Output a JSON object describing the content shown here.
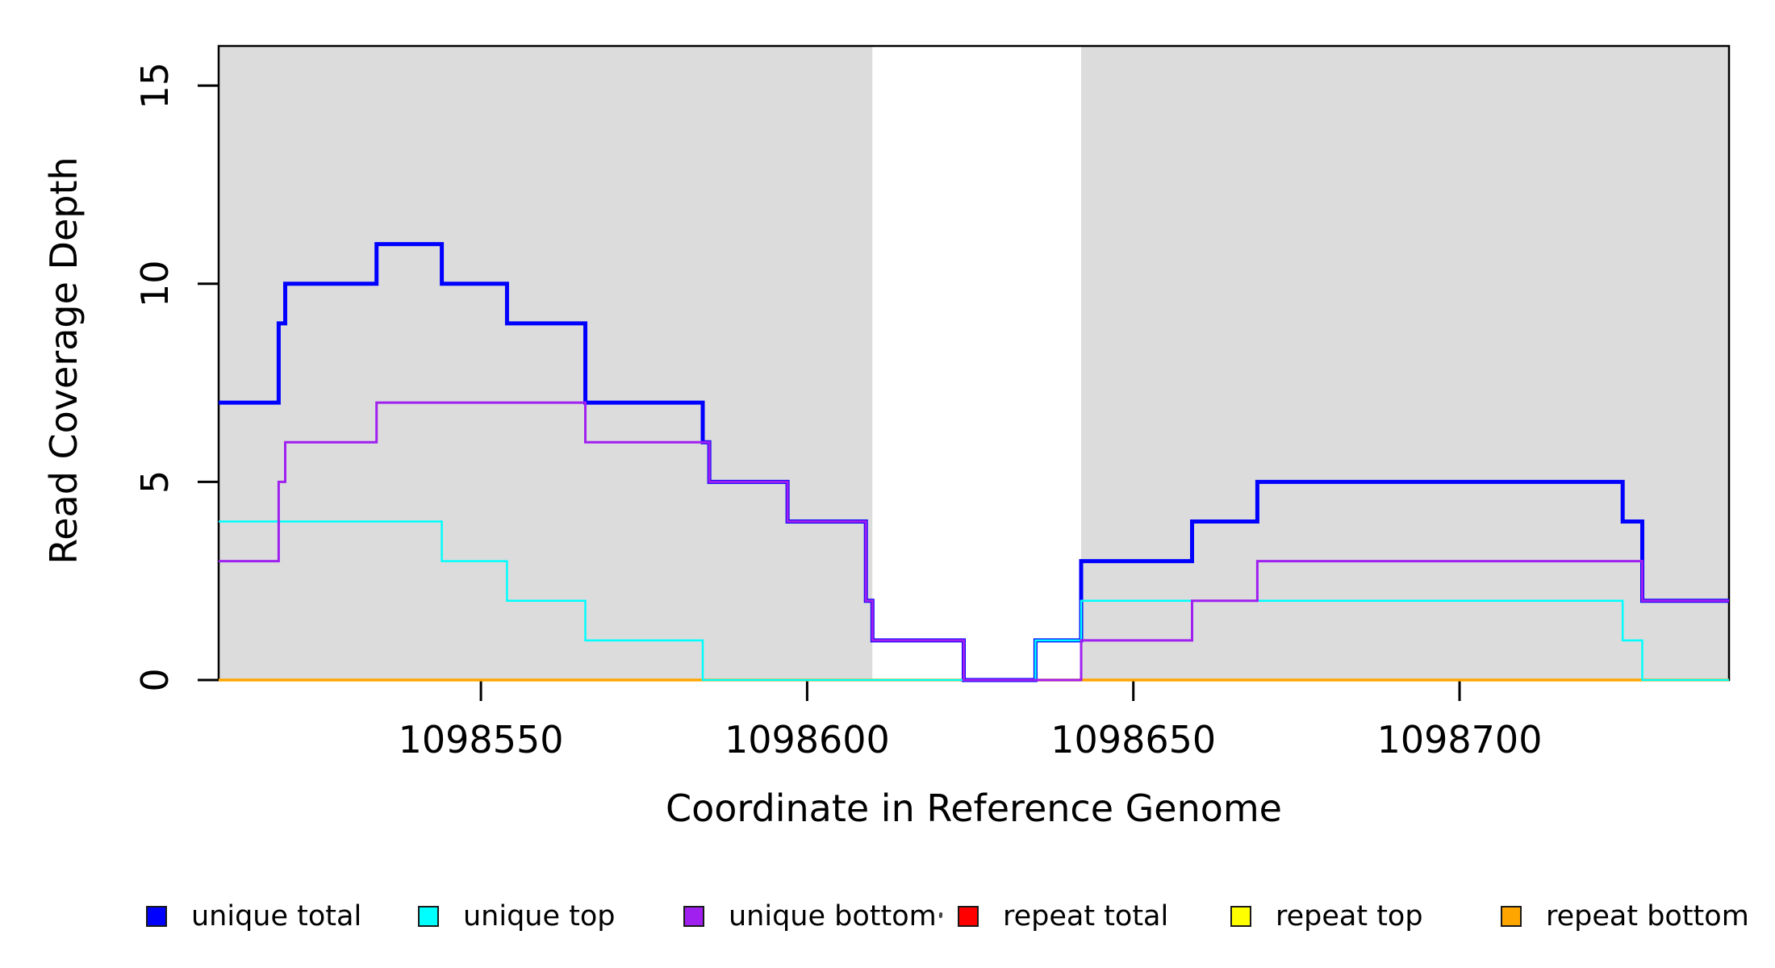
{
  "chart_data": {
    "type": "line",
    "subtype": "step",
    "title": "",
    "xlabel": "Coordinate in Reference Genome",
    "ylabel": "Read Coverage Depth",
    "xlim": [
      1098509.8,
      1098741.3
    ],
    "ylim": [
      0,
      16
    ],
    "x_ticks": [
      1098550,
      1098600,
      1098650,
      1098700
    ],
    "y_ticks": [
      0,
      5,
      10,
      15
    ],
    "grid": false,
    "legend_position": "bottom",
    "shade_color": "#dcdcdc",
    "shaded_regions": [
      [
        1098509.8,
        1098610
      ],
      [
        1098642,
        1098741.3
      ]
    ],
    "draw_order": [
      "repeat total",
      "repeat top",
      "repeat bottom",
      "unique total",
      "unique top",
      "unique bottom"
    ],
    "series": [
      {
        "name": "unique total",
        "color": "#0000ff",
        "line_width": 5,
        "steps": [
          [
            1098510,
            7
          ],
          [
            1098519,
            9
          ],
          [
            1098520,
            10
          ],
          [
            1098534,
            11
          ],
          [
            1098544,
            10
          ],
          [
            1098554,
            9
          ],
          [
            1098566,
            7
          ],
          [
            1098584,
            6
          ],
          [
            1098585,
            5
          ],
          [
            1098597,
            4
          ],
          [
            1098609,
            2
          ],
          [
            1098610,
            1
          ],
          [
            1098624,
            0
          ],
          [
            1098635,
            1
          ],
          [
            1098642,
            3
          ],
          [
            1098659,
            4
          ],
          [
            1098669,
            5
          ],
          [
            1098725,
            4
          ],
          [
            1098728,
            2
          ]
        ]
      },
      {
        "name": "unique top",
        "color": "#00ffff",
        "line_width": 2.5,
        "steps": [
          [
            1098510,
            4
          ],
          [
            1098544,
            3
          ],
          [
            1098554,
            2
          ],
          [
            1098566,
            1
          ],
          [
            1098584,
            0
          ],
          [
            1098635,
            1
          ],
          [
            1098642,
            2
          ],
          [
            1098725,
            1
          ],
          [
            1098728,
            0
          ]
        ]
      },
      {
        "name": "unique bottom",
        "color": "#a020f0",
        "line_width": 3,
        "steps": [
          [
            1098510,
            3
          ],
          [
            1098519,
            5
          ],
          [
            1098520,
            6
          ],
          [
            1098534,
            7
          ],
          [
            1098566,
            6
          ],
          [
            1098585,
            5
          ],
          [
            1098597,
            4
          ],
          [
            1098609,
            2
          ],
          [
            1098610,
            1
          ],
          [
            1098624,
            0
          ],
          [
            1098642,
            1
          ],
          [
            1098659,
            2
          ],
          [
            1098669,
            3
          ],
          [
            1098728,
            2
          ]
        ]
      },
      {
        "name": "repeat total",
        "color": "#ff0000",
        "line_width": 2.5,
        "steps": [
          [
            1098510,
            0
          ]
        ]
      },
      {
        "name": "repeat top",
        "color": "#ffff00",
        "line_width": 2.5,
        "steps": [
          [
            1098510,
            0
          ]
        ]
      },
      {
        "name": "repeat bottom",
        "color": "#ffa500",
        "line_width": 3.5,
        "steps": [
          [
            1098510,
            0
          ]
        ]
      }
    ]
  },
  "legend": {
    "items": [
      {
        "label": "unique total",
        "color": "#0000ff"
      },
      {
        "label": "unique top",
        "color": "#00ffff"
      },
      {
        "label": "unique bottom",
        "color": "#a020f0"
      },
      {
        "label": "repeat total",
        "color": "#ff0000"
      },
      {
        "label": "repeat top",
        "color": "#ffff00"
      },
      {
        "label": "repeat bottom",
        "color": "#ffa500"
      }
    ]
  }
}
